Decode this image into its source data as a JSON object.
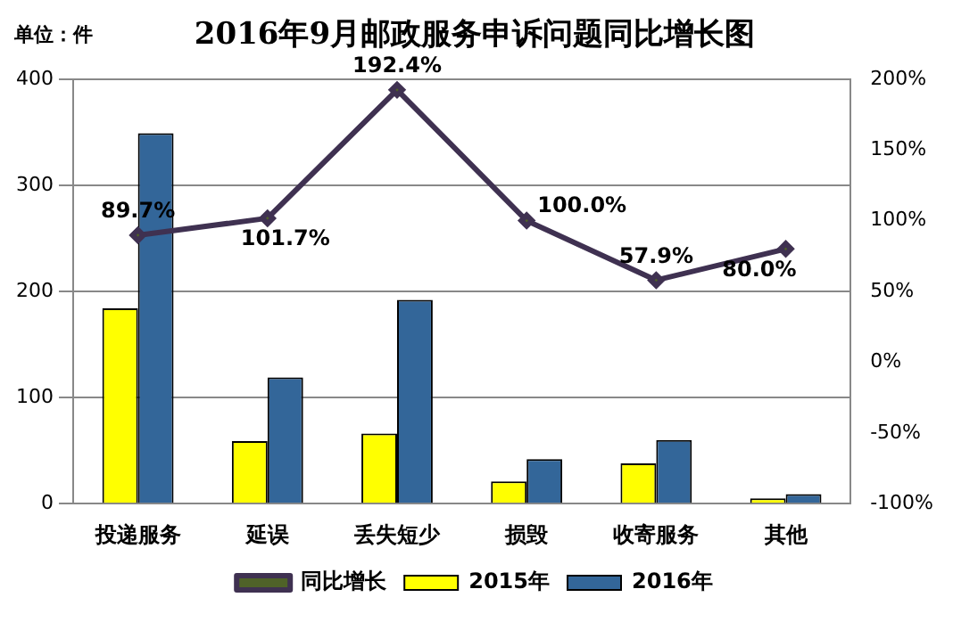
{
  "chart_data": {
    "type": "bar",
    "title": "2016年9月邮政服务申诉问题同比增长图",
    "annotations": [
      "单位：件"
    ],
    "categories": [
      "投递服务",
      "延误",
      "丢失短少",
      "损毁",
      "收寄服务",
      "其他"
    ],
    "series": [
      {
        "name": "2015年",
        "color": "#ffff00",
        "values": [
          184,
          59,
          66,
          21,
          38,
          5
        ]
      },
      {
        "name": "2016年",
        "color": "#336699",
        "values": [
          349,
          119,
          192,
          42,
          60,
          9
        ]
      },
      {
        "name": "同比增长",
        "type": "line",
        "axis": "y2",
        "color": "#3f3151",
        "values": [
          89.7,
          101.7,
          192.4,
          100.0,
          57.9,
          80.0
        ],
        "value_labels": [
          "89.7%",
          "101.7%",
          "192.4%",
          "100.0%",
          "57.9%",
          "80.0%"
        ]
      }
    ],
    "ylim": [
      0,
      400
    ],
    "yticks": [
      0,
      100,
      200,
      300,
      400
    ],
    "y2lim": [
      -100,
      200
    ],
    "y2ticks": [
      {
        "value": -100,
        "label": "-100%"
      },
      {
        "value": -50,
        "label": "-50%"
      },
      {
        "value": 0,
        "label": "0%"
      },
      {
        "value": 50,
        "label": "50%"
      },
      {
        "value": 100,
        "label": "100%"
      },
      {
        "value": 150,
        "label": "150%"
      },
      {
        "value": 200,
        "label": "200%"
      }
    ],
    "grid": "y",
    "legend": "bottom",
    "marker": "diamond",
    "line_style": "solid"
  }
}
